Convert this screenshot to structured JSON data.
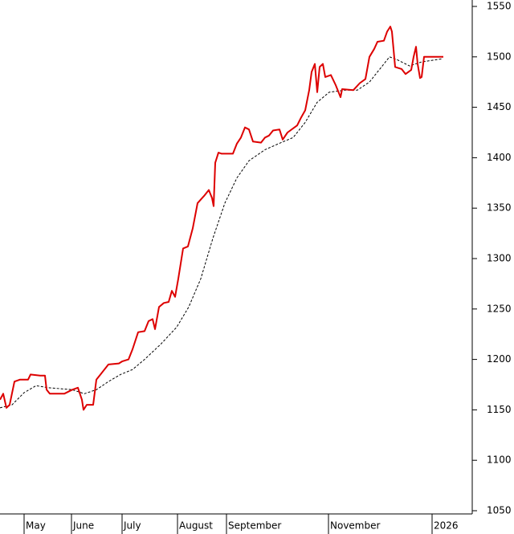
{
  "chart_data": {
    "type": "line",
    "xlim": [
      0,
      588
    ],
    "ylim": [
      1050,
      1550
    ],
    "yticks": [
      1050,
      1100,
      1150,
      1200,
      1250,
      1300,
      1350,
      1400,
      1450,
      1500,
      1550
    ],
    "xticks": [
      {
        "value": 30,
        "label": "May"
      },
      {
        "value": 89,
        "label": "June"
      },
      {
        "value": 152,
        "label": "July"
      },
      {
        "value": 221,
        "label": "August"
      },
      {
        "value": 282,
        "label": "September"
      },
      {
        "value": 409,
        "label": "November"
      },
      {
        "value": 538,
        "label": "2026"
      }
    ],
    "series": [
      {
        "color": "#dd0000",
        "dashed": false,
        "x": [
          0,
          4,
          8,
          12,
          18,
          25,
          35,
          38,
          50,
          56,
          58,
          62,
          80,
          90,
          97,
          102,
          104,
          108,
          116,
          120,
          126,
          135,
          148,
          152,
          160,
          165,
          172,
          180,
          185,
          190,
          193,
          198,
          204,
          210,
          214,
          218,
          222,
          228,
          234,
          240,
          246,
          254,
          260,
          264,
          266,
          268,
          272,
          276,
          290,
          295,
          300,
          305,
          310,
          315,
          325,
          330,
          335,
          340,
          348,
          352,
          358,
          370,
          375,
          380,
          385,
          388,
          392,
          395,
          398,
          402,
          405,
          412,
          418,
          424,
          426,
          440,
          448,
          455,
          460,
          466,
          470,
          478,
          482,
          486,
          488,
          492,
          500,
          505,
          512,
          515,
          518,
          520,
          523,
          525,
          528,
          552
        ],
        "values": [
          1160,
          1166,
          1152,
          1155,
          1178,
          1180,
          1180,
          1185,
          1184,
          1184,
          1170,
          1166,
          1166,
          1170,
          1172,
          1160,
          1150,
          1155,
          1155,
          1180,
          1186,
          1195,
          1196,
          1198,
          1200,
          1210,
          1227,
          1228,
          1238,
          1240,
          1230,
          1252,
          1256,
          1257,
          1268,
          1262,
          1280,
          1310,
          1312,
          1330,
          1355,
          1362,
          1368,
          1360,
          1352,
          1395,
          1405,
          1404,
          1404,
          1414,
          1420,
          1430,
          1428,
          1416,
          1415,
          1420,
          1422,
          1427,
          1428,
          1418,
          1425,
          1432,
          1440,
          1447,
          1467,
          1485,
          1493,
          1465,
          1490,
          1493,
          1480,
          1482,
          1472,
          1460,
          1468,
          1467,
          1474,
          1478,
          1500,
          1508,
          1515,
          1516,
          1525,
          1530,
          1525,
          1490,
          1488,
          1483,
          1487,
          1500,
          1510,
          1493,
          1479,
          1480,
          1500,
          1500
        ]
      },
      {
        "color": "#000000",
        "dashed": true,
        "x": [
          0,
          15,
          30,
          45,
          60,
          90,
          105,
          120,
          135,
          150,
          165,
          180,
          200,
          220,
          235,
          250,
          265,
          280,
          295,
          310,
          330,
          350,
          365,
          380,
          395,
          410,
          430,
          445,
          460,
          475,
          485,
          495,
          510,
          525,
          550
        ],
        "values": [
          1152,
          1155,
          1167,
          1174,
          1172,
          1170,
          1166,
          1170,
          1178,
          1185,
          1190,
          1200,
          1215,
          1232,
          1252,
          1280,
          1320,
          1355,
          1380,
          1397,
          1408,
          1415,
          1420,
          1435,
          1455,
          1465,
          1467,
          1467,
          1475,
          1490,
          1500,
          1497,
          1491,
          1495,
          1498
        ]
      }
    ]
  }
}
